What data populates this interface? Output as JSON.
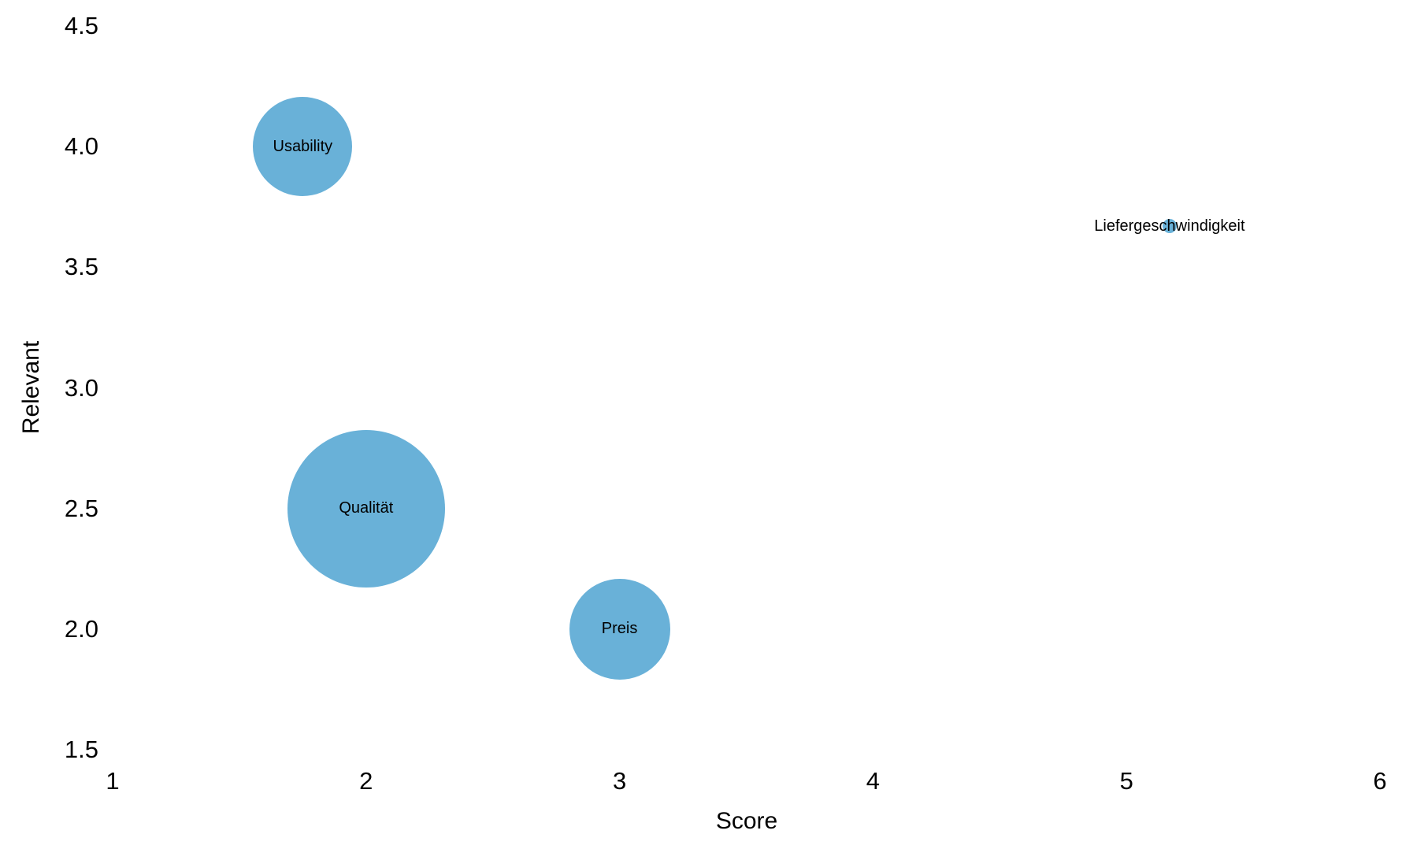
{
  "chart_data": {
    "type": "scatter",
    "variant": "bubble",
    "title": "",
    "xlabel": "Score",
    "ylabel": "Relevant",
    "xlim": [
      1,
      6
    ],
    "ylim": [
      1.5,
      4.5
    ],
    "grid": false,
    "axis_lines": false,
    "legend": "none",
    "background_color": "#ffffff",
    "bubble_color": "#69B1D8",
    "text_color": "#000000",
    "x_ticks": [
      {
        "value": 1,
        "label": "1"
      },
      {
        "value": 2,
        "label": "2"
      },
      {
        "value": 3,
        "label": "3"
      },
      {
        "value": 4,
        "label": "4"
      },
      {
        "value": 5,
        "label": "5"
      },
      {
        "value": 6,
        "label": "6"
      }
    ],
    "y_ticks": [
      {
        "value": 1.5,
        "label": "1.5"
      },
      {
        "value": 2.0,
        "label": "2.0"
      },
      {
        "value": 2.5,
        "label": "2.5"
      },
      {
        "value": 3.0,
        "label": "3.0"
      },
      {
        "value": 3.5,
        "label": "3.5"
      },
      {
        "value": 4.0,
        "label": "4.0"
      },
      {
        "value": 4.5,
        "label": "4.5"
      }
    ],
    "points": [
      {
        "label": "Usability",
        "x": 1.75,
        "y": 4.0,
        "radius_px": 63,
        "size_weight": 7
      },
      {
        "label": "Qualität",
        "x": 2.0,
        "y": 2.5,
        "radius_px": 100,
        "size_weight": 11
      },
      {
        "label": "Preis",
        "x": 3.0,
        "y": 2.0,
        "radius_px": 64,
        "size_weight": 7
      },
      {
        "label": "Liefergeschwindigkeit",
        "x": 5.17,
        "y": 3.67,
        "radius_px": 9,
        "size_weight": 1
      }
    ]
  }
}
